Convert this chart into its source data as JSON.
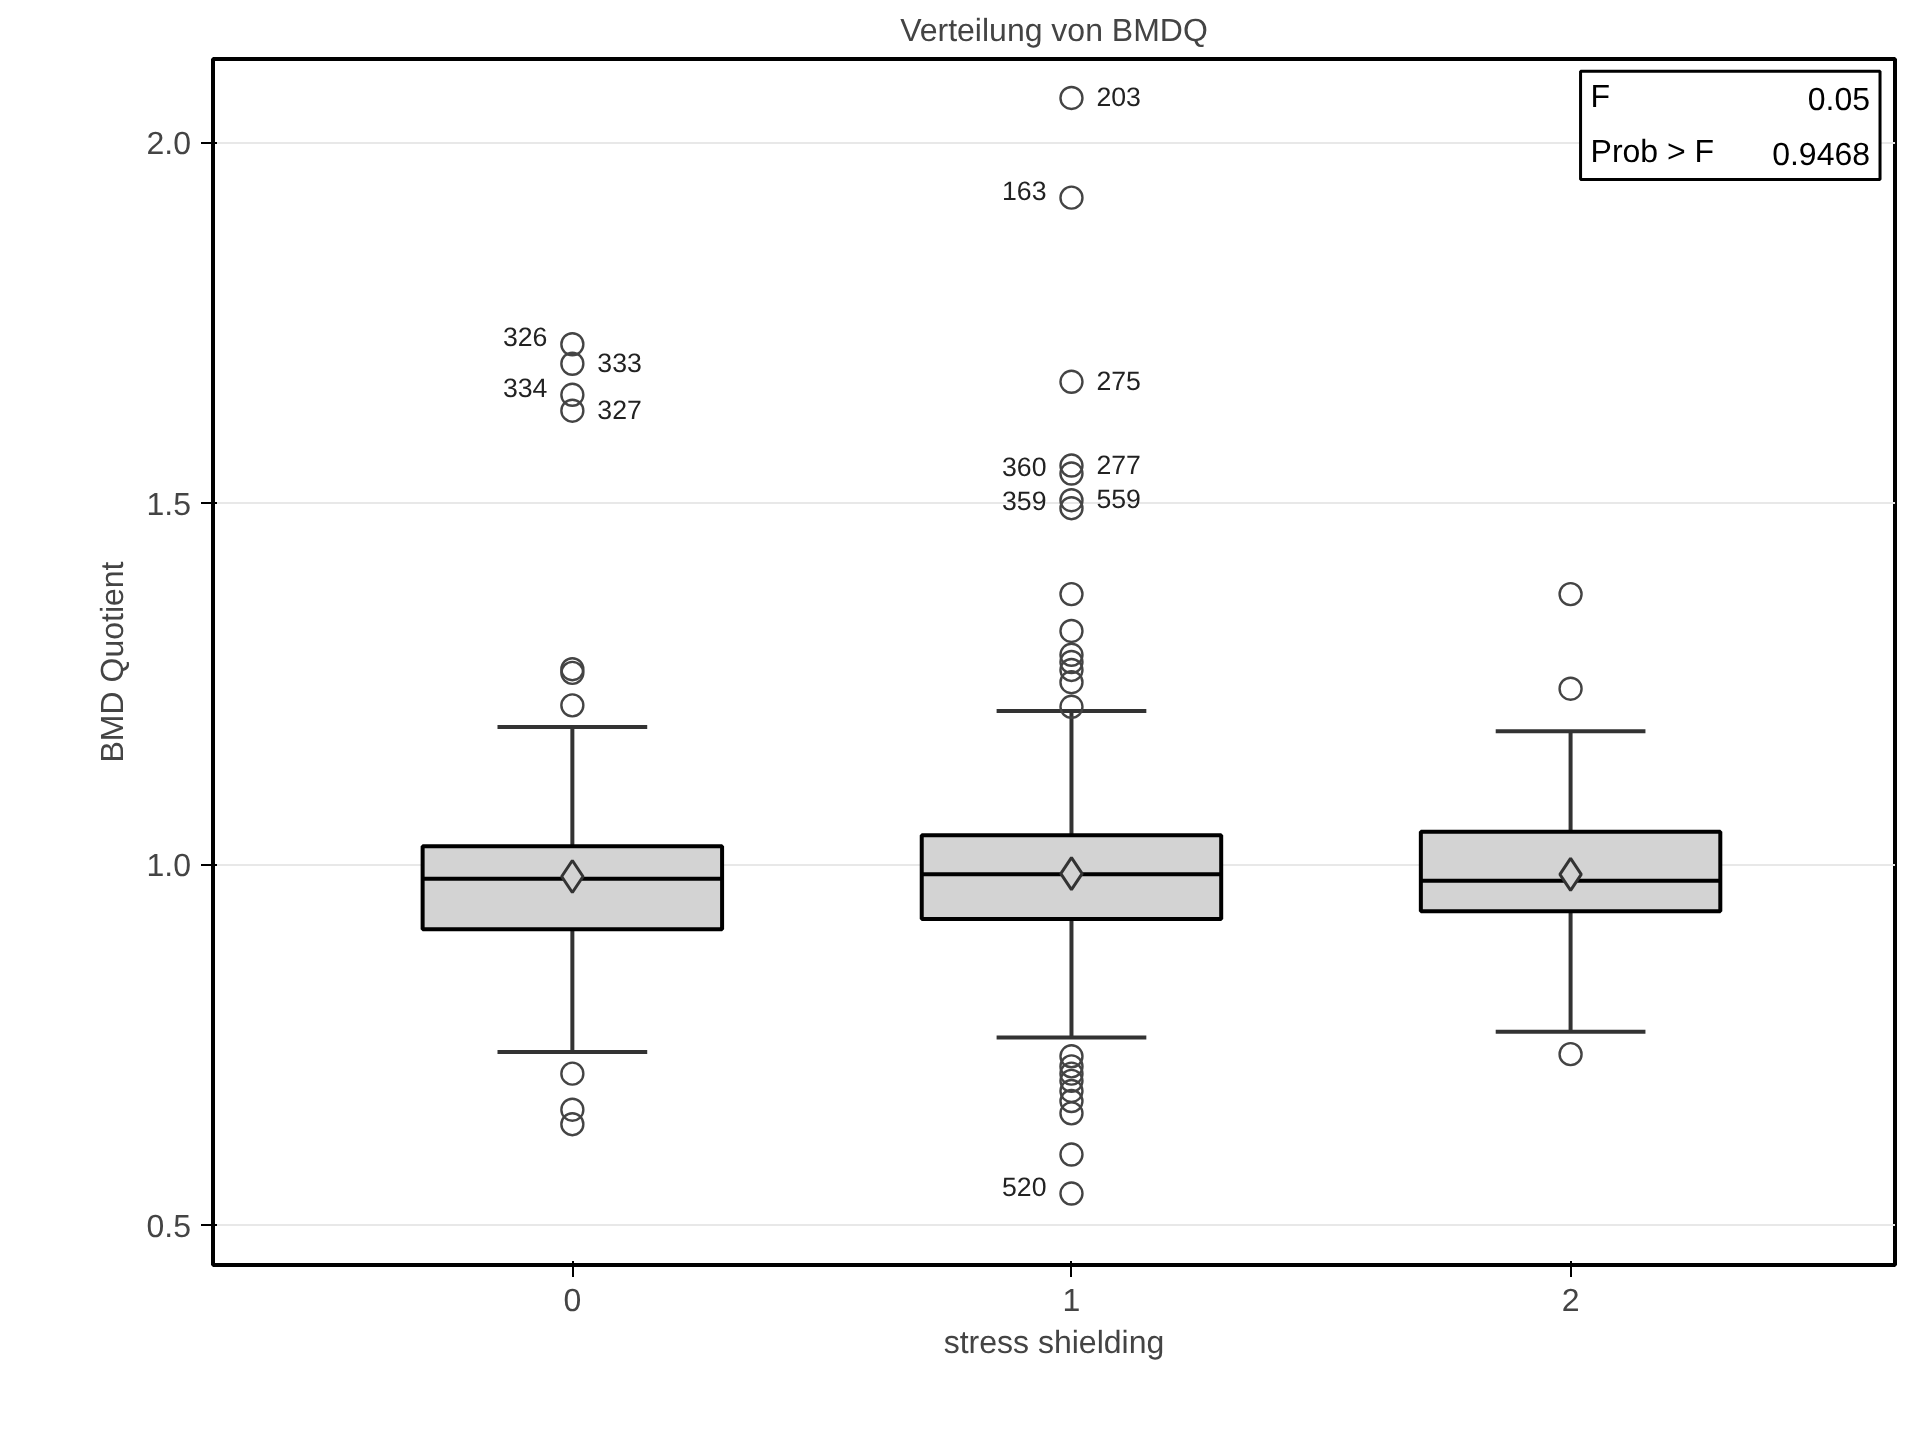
{
  "chart_data": {
    "type": "box",
    "title": "Verteilung von BMDQ",
    "xlabel": "stress shielding",
    "ylabel": "BMD Quotient",
    "categories": [
      "0",
      "1",
      "2"
    ],
    "series": [
      {
        "color": "#d3d3d3",
        "boxes": [
          {
            "low": 0.74,
            "q1": 0.91,
            "median": 0.98,
            "q3": 1.025,
            "high": 1.19,
            "mean": 0.983,
            "outliers": [
              1.27,
              1.265,
              1.22,
              0.71,
              0.66,
              0.64
            ]
          },
          {
            "low": 0.76,
            "q1": 0.924,
            "median": 0.986,
            "q3": 1.04,
            "high": 1.212,
            "mean": 0.987,
            "outliers": [
              1.374,
              1.323,
              1.29,
              1.28,
              1.269,
              1.252,
              1.218,
              0.734,
              0.72,
              0.71,
              0.7,
              0.686,
              0.672,
              0.655,
              0.598
            ]
          },
          {
            "low": 0.768,
            "q1": 0.935,
            "median": 0.977,
            "q3": 1.045,
            "high": 1.184,
            "mean": 0.986,
            "outliers": [
              1.374,
              1.243,
              0.737
            ]
          }
        ]
      },
      {
        "type": "scatter",
        "color": "#444444",
        "x": [
          "0",
          "0",
          "0",
          "0",
          "1",
          "1",
          "1",
          "1",
          "1",
          "1",
          "1",
          "1"
        ],
        "values": [
          1.72,
          1.693,
          1.65,
          1.628,
          2.061,
          1.923,
          1.668,
          1.552,
          1.541,
          1.504,
          1.493,
          0.544
        ]
      }
    ],
    "ylim": [
      0.445,
      2.115
    ],
    "yticks": [
      {
        "value": 0.5,
        "label": "0.5"
      },
      {
        "value": 1.0,
        "label": "1.0"
      },
      {
        "value": 1.5,
        "label": "1.5"
      },
      {
        "value": 2.0,
        "label": "2.0"
      }
    ],
    "grid": "y",
    "marker": "circle",
    "annotations": [
      "F",
      "0.05",
      "Prob > F",
      "0.9468",
      {
        "text": "326",
        "x": "0",
        "y": 1.72
      },
      {
        "text": "333",
        "x": "0",
        "y": 1.693
      },
      {
        "text": "334",
        "x": "0",
        "y": 1.65
      },
      {
        "text": "327",
        "x": "0",
        "y": 1.628
      },
      {
        "text": "163",
        "x": "1",
        "y": 1.923
      },
      {
        "text": "203",
        "x": "1",
        "y": 2.061
      },
      {
        "text": "360",
        "x": "1",
        "y": 1.541
      },
      {
        "text": "275",
        "x": "1",
        "y": 1.668
      },
      {
        "text": "359",
        "x": "1",
        "y": 1.493
      },
      {
        "text": "277",
        "x": "1",
        "y": 1.552
      },
      {
        "text": "520",
        "x": "1",
        "y": 0.544
      },
      {
        "text": "559",
        "x": "1",
        "y": 1.504
      }
    ]
  }
}
